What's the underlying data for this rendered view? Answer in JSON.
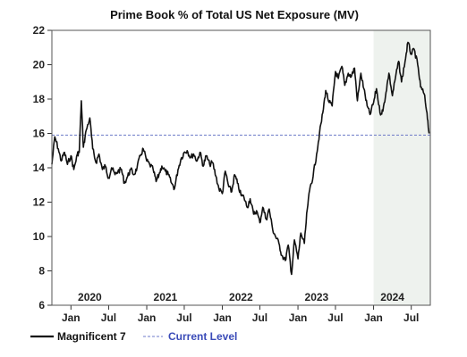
{
  "chart_data": {
    "type": "line",
    "title": "Prime Book % of Total US Net Exposure (MV)",
    "xlabel": "",
    "ylabel": "",
    "ylim": [
      6,
      22
    ],
    "yticks": [
      6,
      8,
      10,
      12,
      14,
      16,
      18,
      20,
      22
    ],
    "xlim": [
      "2019-10-01",
      "2024-10-01"
    ],
    "year_labels": [
      "2020",
      "2021",
      "2022",
      "2023",
      "2024"
    ],
    "month_labels": [
      "Jan",
      "Jul",
      "Jan",
      "Jul",
      "Jan",
      "Jul",
      "Jan",
      "Jul",
      "Jan",
      "Jul"
    ],
    "shaded_region": {
      "start": "2024-01-01",
      "end": "2024-10-01",
      "color": "#eef2ee"
    },
    "series": [
      {
        "name": "Magnificent 7",
        "style": "solid",
        "color": "#111111",
        "x": [
          "2019-10-01",
          "2019-10-15",
          "2019-11-01",
          "2019-11-15",
          "2019-12-01",
          "2019-12-15",
          "2020-01-01",
          "2020-01-15",
          "2020-02-01",
          "2020-02-10",
          "2020-02-20",
          "2020-03-01",
          "2020-03-15",
          "2020-04-01",
          "2020-04-15",
          "2020-05-01",
          "2020-05-15",
          "2020-06-01",
          "2020-06-15",
          "2020-07-01",
          "2020-07-15",
          "2020-08-01",
          "2020-08-15",
          "2020-09-01",
          "2020-09-15",
          "2020-10-01",
          "2020-10-15",
          "2020-11-01",
          "2020-11-15",
          "2020-12-01",
          "2020-12-15",
          "2021-01-01",
          "2021-01-15",
          "2021-02-01",
          "2021-02-15",
          "2021-03-01",
          "2021-03-15",
          "2021-04-01",
          "2021-04-15",
          "2021-05-01",
          "2021-05-15",
          "2021-06-01",
          "2021-06-15",
          "2021-07-01",
          "2021-07-15",
          "2021-08-01",
          "2021-08-15",
          "2021-09-01",
          "2021-09-15",
          "2021-10-01",
          "2021-10-15",
          "2021-11-01",
          "2021-11-15",
          "2021-12-01",
          "2021-12-15",
          "2022-01-01",
          "2022-01-15",
          "2022-02-01",
          "2022-02-15",
          "2022-03-01",
          "2022-03-15",
          "2022-04-01",
          "2022-04-15",
          "2022-05-01",
          "2022-05-15",
          "2022-06-01",
          "2022-06-15",
          "2022-07-01",
          "2022-07-15",
          "2022-08-01",
          "2022-08-15",
          "2022-09-01",
          "2022-09-15",
          "2022-10-01",
          "2022-10-15",
          "2022-11-01",
          "2022-11-15",
          "2022-12-01",
          "2022-12-15",
          "2023-01-01",
          "2023-01-15",
          "2023-02-01",
          "2023-02-15",
          "2023-03-01",
          "2023-03-15",
          "2023-04-01",
          "2023-04-15",
          "2023-05-01",
          "2023-05-15",
          "2023-06-01",
          "2023-06-15",
          "2023-07-01",
          "2023-07-15",
          "2023-08-01",
          "2023-08-15",
          "2023-09-01",
          "2023-09-15",
          "2023-10-01",
          "2023-10-15",
          "2023-11-01",
          "2023-11-15",
          "2023-12-01",
          "2023-12-15",
          "2024-01-01",
          "2024-01-15",
          "2024-02-01",
          "2024-02-15",
          "2024-03-01",
          "2024-03-15",
          "2024-04-01",
          "2024-04-15",
          "2024-05-01",
          "2024-05-15",
          "2024-06-01",
          "2024-06-15",
          "2024-07-01",
          "2024-07-15",
          "2024-08-01",
          "2024-08-15",
          "2024-09-01",
          "2024-09-15",
          "2024-09-25"
        ],
        "y": [
          14.2,
          15.8,
          15.1,
          14.4,
          14.9,
          14.2,
          14.7,
          13.9,
          14.8,
          14.9,
          17.9,
          15.2,
          16.2,
          16.9,
          15.1,
          14.3,
          14.8,
          13.9,
          14.1,
          13.4,
          14.0,
          13.6,
          13.8,
          13.9,
          13.1,
          13.5,
          13.9,
          13.6,
          14.0,
          14.7,
          15.1,
          14.4,
          14.2,
          13.9,
          13.2,
          13.6,
          14.1,
          13.8,
          13.6,
          13.1,
          12.8,
          13.9,
          14.5,
          14.9,
          15.0,
          14.6,
          14.8,
          14.4,
          14.9,
          14.1,
          14.7,
          14.2,
          14.3,
          13.5,
          12.8,
          12.5,
          13.8,
          12.9,
          12.6,
          13.6,
          13.1,
          12.4,
          12.3,
          11.7,
          12.2,
          11.3,
          11.5,
          10.8,
          11.7,
          11.0,
          11.6,
          10.4,
          10.0,
          9.6,
          8.9,
          8.6,
          9.5,
          7.8,
          9.8,
          8.7,
          10.2,
          9.6,
          11.6,
          12.9,
          13.5,
          14.8,
          16.0,
          17.2,
          18.5,
          17.8,
          17.6,
          19.6,
          19.2,
          19.9,
          18.8,
          19.5,
          19.3,
          19.8,
          17.9,
          19.5,
          18.6,
          17.6,
          17.1,
          17.8,
          18.6,
          17.2,
          17.3,
          18.4,
          19.5,
          18.2,
          19.2,
          20.2,
          19.0,
          20.2,
          21.3,
          20.6,
          20.9,
          20.0,
          18.7,
          18.3,
          17.2,
          16.0
        ]
      },
      {
        "name": "Current Level",
        "style": "dashed",
        "color": "#6c79c8",
        "value": 15.9
      }
    ],
    "legend": {
      "placement": "bottom-left",
      "items": [
        "Magnificent 7",
        "Current Level"
      ]
    },
    "grid": false
  }
}
